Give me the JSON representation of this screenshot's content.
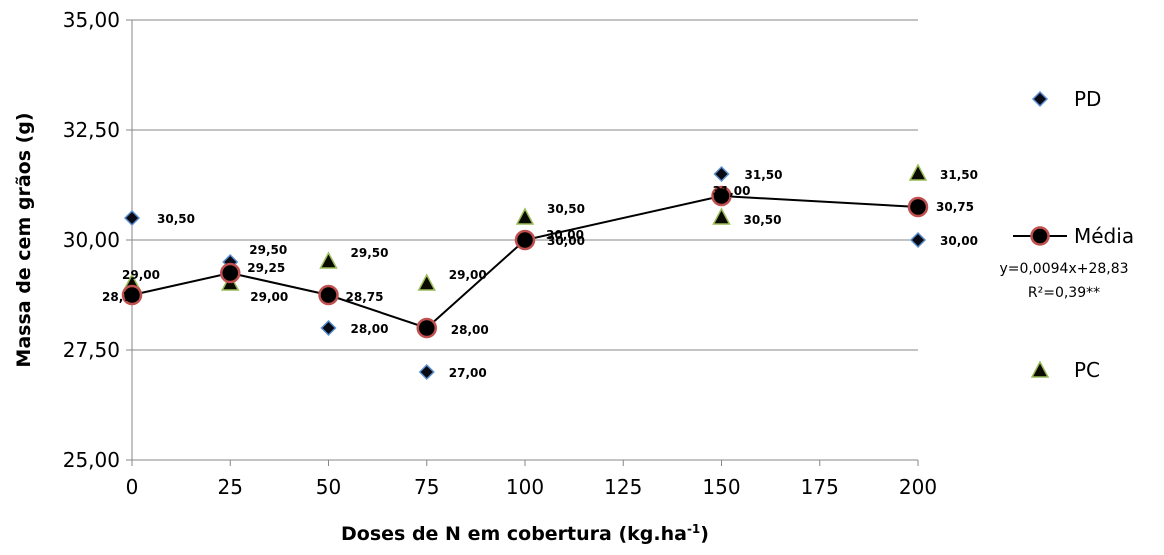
{
  "chart_data": {
    "type": "scatter",
    "xlabel": "Doses de N em cobertura (kg.ha",
    "xlabel_sup": "-1",
    "xlabel_end": ")",
    "ylabel": "Massa de cem grãos (g)",
    "xlim": [
      0,
      200
    ],
    "ylim": [
      25,
      35
    ],
    "x_ticks": [
      0,
      25,
      50,
      75,
      100,
      125,
      150,
      175,
      200
    ],
    "x_tick_labels": [
      "0",
      "25",
      "50",
      "75",
      "100",
      "125",
      "150",
      "175",
      "200"
    ],
    "y_ticks": [
      25,
      27.5,
      30,
      32.5,
      35
    ],
    "y_tick_labels": [
      "25,00",
      "27,50",
      "30,00",
      "32,50",
      "35,00"
    ],
    "grid": true,
    "legend_position": "right",
    "series": [
      {
        "name": "PD",
        "marker": "diamond",
        "color": "#0a0a14",
        "edge": "#5b8fd0",
        "line": false,
        "x": [
          0,
          25,
          50,
          75,
          100,
          150,
          200
        ],
        "y": [
          30.5,
          29.5,
          28.0,
          27.0,
          30.0,
          31.5,
          30.0
        ],
        "labels": [
          "30,50",
          "29,50",
          "28,00",
          "27,00",
          "30,00",
          "31,50",
          "30,00"
        ]
      },
      {
        "name": "Média",
        "marker": "circle",
        "color": "#000000",
        "edge": "#c0504d",
        "line": true,
        "x": [
          0,
          25,
          50,
          75,
          100,
          150,
          200
        ],
        "y": [
          28.75,
          29.25,
          28.75,
          28.0,
          30.0,
          31.0,
          30.75
        ],
        "labels": [
          "28,75",
          "29,25",
          "28,75",
          "28,00",
          "30,00",
          "31,00",
          "30,75"
        ]
      },
      {
        "name": "PC",
        "marker": "triangle",
        "color": "#0a0a00",
        "edge": "#9bbb59",
        "line": false,
        "x": [
          0,
          25,
          50,
          75,
          100,
          150,
          200
        ],
        "y": [
          29.0,
          29.0,
          29.5,
          29.0,
          30.5,
          30.5,
          31.5
        ],
        "labels": [
          "29,00",
          "29,00",
          "29,50",
          "29,00",
          "30,50",
          "30,50",
          "31,50"
        ]
      }
    ],
    "annotations": {
      "equation": "y=0,0094x+28,83",
      "r2": "R²=0,39**"
    }
  }
}
